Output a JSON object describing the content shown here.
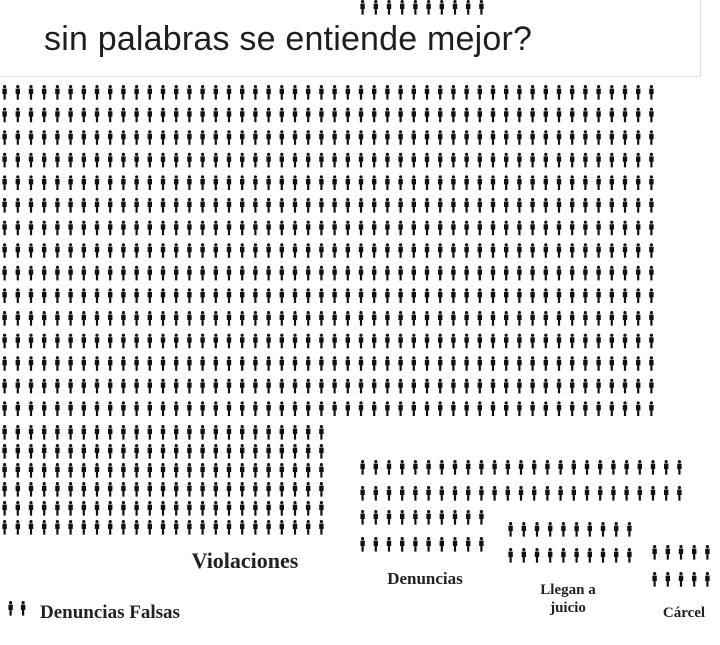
{
  "header": {
    "title": "sin palabras se entiende mejor?"
  },
  "chart_data": {
    "type": "pictogram",
    "unit": "person-icon",
    "icon_color": "#111111",
    "series": [
      {
        "label": "Violaciones",
        "value": 1050
      },
      {
        "label": "Denuncias",
        "value": 80
      },
      {
        "label_lines": [
          "Llegan a",
          "juicio"
        ],
        "value": 20
      },
      {
        "label": "Cárcel",
        "value": 10
      },
      {
        "label": "Denuncias Falsas",
        "value": 2
      }
    ]
  }
}
